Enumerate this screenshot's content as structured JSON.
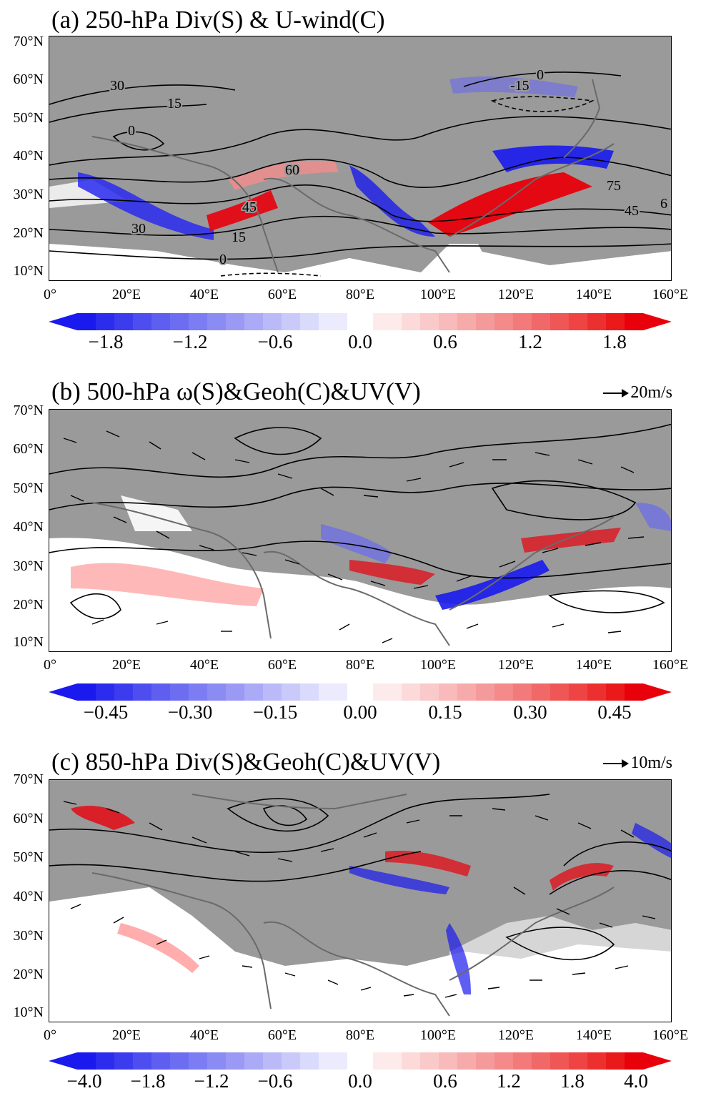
{
  "panels": [
    {
      "id": "a",
      "title": "(a) 250-hPa Div(S) & U-wind(C)",
      "ref_vector": "",
      "lat_labels": [
        "70°N",
        "60°N",
        "50°N",
        "40°N",
        "30°N",
        "20°N",
        "10°N"
      ],
      "lon_labels": [
        "0°",
        "20°E",
        "40°E",
        "60°E",
        "80°E",
        "100°E",
        "120°E",
        "140°E",
        "160°E"
      ],
      "contour_labels": [
        "30",
        "15",
        "0",
        "60",
        "45",
        "30",
        "15",
        "0",
        "-15",
        "0",
        "75",
        "6",
        "45"
      ],
      "colorbar_ticks": [
        "−1.8",
        "−1.2",
        "−0.6",
        "0.0",
        "0.6",
        "1.2",
        "1.8"
      ]
    },
    {
      "id": "b",
      "title": "(b) 500-hPa ω(S)&Geoh(C)&UV(V)",
      "ref_vector": "20m/s",
      "lat_labels": [
        "70°N",
        "60°N",
        "50°N",
        "40°N",
        "30°N",
        "20°N",
        "10°N"
      ],
      "lon_labels": [
        "0°",
        "20°E",
        "40°E",
        "60°E",
        "80°E",
        "100°E",
        "120°E",
        "140°E",
        "160°E"
      ],
      "contour_labels": [],
      "colorbar_ticks": [
        "−0.45",
        "−0.30",
        "−0.15",
        "0.00",
        "0.15",
        "0.30",
        "0.45"
      ]
    },
    {
      "id": "c",
      "title": "(c) 850-hPa Div(S)&Geoh(C)&UV(V)",
      "ref_vector": "10m/s",
      "lat_labels": [
        "70°N",
        "60°N",
        "50°N",
        "40°N",
        "30°N",
        "20°N",
        "10°N"
      ],
      "lon_labels": [
        "0°",
        "20°E",
        "40°E",
        "60°E",
        "80°E",
        "100°E",
        "120°E",
        "140°E",
        "160°E"
      ],
      "contour_labels": [],
      "colorbar_ticks": [
        "−4.0",
        "−1.8",
        "−1.2",
        "−0.6",
        "0.0",
        "0.6",
        "1.2",
        "1.8",
        "4.0"
      ]
    }
  ],
  "colors": {
    "positive": "#e8000b",
    "negative": "#1a1aee",
    "land_mask": "#9a9a9a",
    "coast": "#6a6a6a"
  }
}
